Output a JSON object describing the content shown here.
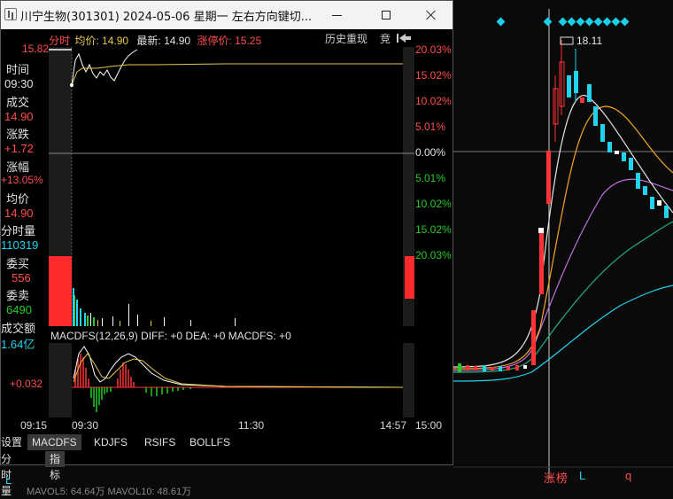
{
  "window": {
    "title": "川宁生物(301301) 2024-05-06 星期一    左右方向键切...",
    "minimize_icon": "minimize-icon",
    "maximize_icon": "maximize-icon",
    "close_icon": "close-icon"
  },
  "info_bar": {
    "label_fenshi": "分时",
    "label_junjia": "均价: 14.90",
    "label_zuixin": "最新: 14.90",
    "label_zhangting": "涨停价: 15.25",
    "history_replay": "历史重现",
    "jing": "竞",
    "back_icon": "arrow-back-icon"
  },
  "left_panel": {
    "top_price": "15.82",
    "time_label": "时间",
    "time_value": "09:30",
    "chengjiao_label": "成交",
    "chengjiao_value": "14.90",
    "zhangdie_label": "涨跌",
    "zhangdie_value": "+1.72",
    "zhangfu_label": "涨幅",
    "zhangfu_value": "+13.05%",
    "junjia_label": "均价",
    "junjia_value": "14.90",
    "fenshiliang_label": "分时量",
    "fenshiliang_value": "110319",
    "weimai_label": "委买",
    "weimai_value": "556",
    "weimai2_label": "委卖",
    "weimai2_value": "6490",
    "chengjiaoe_label": "成交额",
    "chengjiaoe_value": "1.64亿"
  },
  "pct_axis": [
    "20.03%",
    "15.02%",
    "10.02%",
    "5.01%",
    "0.00%",
    "5.01%",
    "10.02%",
    "15.02%",
    "20.03%"
  ],
  "macd": {
    "label": "MACDFS(12,26,9) DIFF: +0 DEA: +0 MACDFS: +0",
    "value_label": "+0.032"
  },
  "time_axis": [
    "09:15",
    "09:30",
    "11:30",
    "14:57",
    "15:00"
  ],
  "tabs": [
    "设置",
    "MACDFS",
    "KDJFS",
    "RSIFS",
    "BOLLFS"
  ],
  "tabs2": [
    "分时量",
    "指标"
  ],
  "right_chart": {
    "high_label": "18.11",
    "bottom_label_zhangting": "涨",
    "bottom_label_bang": "榜",
    "bottom_L1": "L",
    "bottom_L2": "L",
    "bottom_q": "q",
    "ma_vol": "MAVOL5: 64.64万   MAVOL10: 48.61万"
  },
  "colors": {
    "up": "#ff3333",
    "down": "#22cc22",
    "cyan": "#22d3ee",
    "yellow": "#e6c84a",
    "orange": "#f5a623"
  }
}
